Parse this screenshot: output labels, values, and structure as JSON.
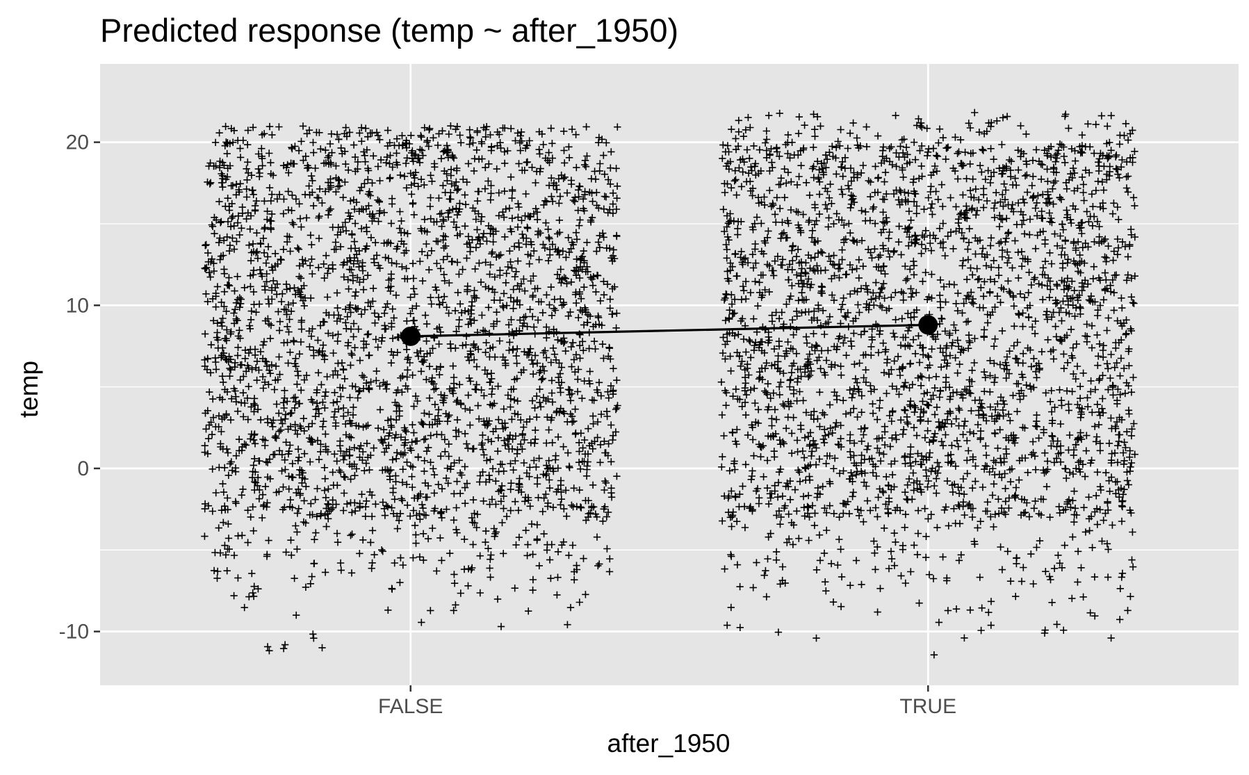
{
  "chart_data": {
    "type": "scatter",
    "title": "Predicted response (temp ~ after_1950)",
    "xlabel": "after_1950",
    "ylabel": "temp",
    "categories": [
      "FALSE",
      "TRUE"
    ],
    "y_ticks": [
      -10,
      0,
      10,
      20
    ],
    "ylim": [
      -13.3,
      24.8
    ],
    "grid": true,
    "legend": "none",
    "point_shape": "plus",
    "point_color": "#000000",
    "panel_background": "#e5e5e5",
    "gridline_color": "#ffffff",
    "fit": {
      "type": "line",
      "categories": [
        "FALSE",
        "TRUE"
      ],
      "values": [
        8.1,
        8.8
      ]
    },
    "point_clouds": [
      {
        "category": "FALSE",
        "jitter_width": 0.4,
        "y_min": -11.6,
        "y_max": 21.0,
        "dense_range": [
          -3,
          20
        ],
        "n_points_approx": 2600
      },
      {
        "category": "TRUE",
        "jitter_width": 0.4,
        "y_min": -11.5,
        "y_max": 23.3,
        "dense_range": [
          -3,
          20
        ],
        "n_points_approx": 2600
      }
    ]
  }
}
